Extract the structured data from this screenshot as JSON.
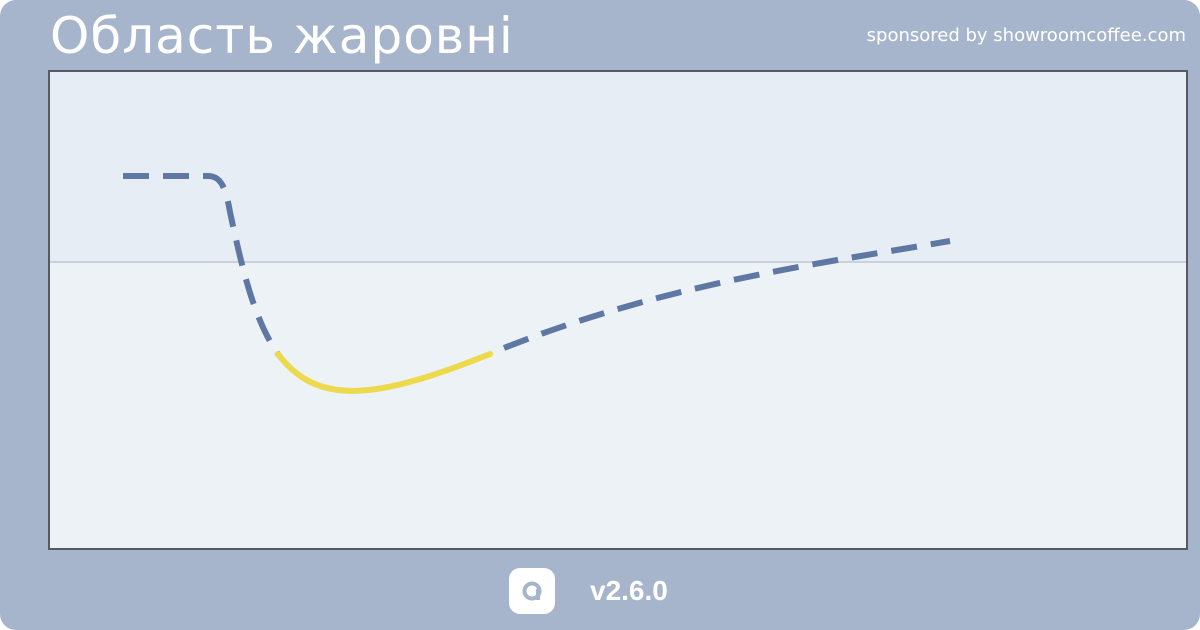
{
  "header": {
    "title": "Область жаровні",
    "sponsor": "sponsored by showroomcoffee.com"
  },
  "footer": {
    "logo_icon": "app-logo-icon",
    "version": "v2.6.0"
  },
  "colors": {
    "background": "#a7b5cc",
    "plot_background": "#edf2f7",
    "plot_upper_band": "#e6edf5",
    "reference_line": "#c8d2de",
    "curve_dashed": "#5f77a3",
    "curve_highlight": "#ecd94c",
    "text": "#ffffff"
  }
}
